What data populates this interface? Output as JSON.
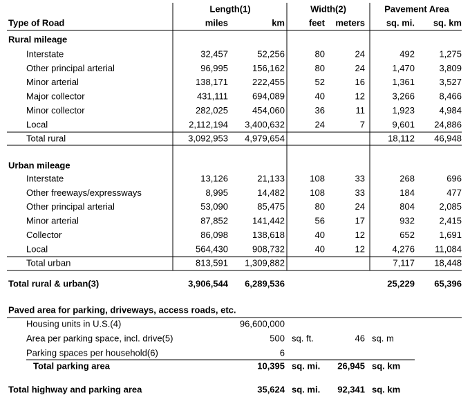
{
  "header": {
    "group_labels": [
      "Length(1)",
      "Width(2)",
      "Pavement Area"
    ],
    "row_label": "Type of Road",
    "units": [
      "miles",
      "km",
      "feet",
      "meters",
      "sq. mi.",
      "sq. km"
    ]
  },
  "rural": {
    "heading": "Rural mileage",
    "rows": [
      [
        "Interstate",
        "32,457",
        "52,256",
        "80",
        "24",
        "492",
        "1,275"
      ],
      [
        "Other principal arterial",
        "96,995",
        "156,162",
        "80",
        "24",
        "1,470",
        "3,809"
      ],
      [
        "Minor arterial",
        "138,171",
        "222,455",
        "52",
        "16",
        "1,361",
        "3,527"
      ],
      [
        "Major collector",
        "431,111",
        "694,089",
        "40",
        "12",
        "3,266",
        "8,466"
      ],
      [
        "Minor collector",
        "282,025",
        "454,060",
        "36",
        "11",
        "1,923",
        "4,984"
      ],
      [
        "Local",
        "2,112,194",
        "3,400,632",
        "24",
        "7",
        "9,601",
        "24,886"
      ]
    ],
    "total": [
      "Total rural",
      "3,092,953",
      "4,979,654",
      null,
      null,
      "18,112",
      "46,948"
    ]
  },
  "urban": {
    "heading": "Urban mileage",
    "rows": [
      [
        "Interstate",
        "13,126",
        "21,133",
        "108",
        "33",
        "268",
        "696"
      ],
      [
        "Other freeways/expressways",
        "8,995",
        "14,482",
        "108",
        "33",
        "184",
        "477"
      ],
      [
        "Other principal arterial",
        "53,090",
        "85,475",
        "80",
        "24",
        "804",
        "2,085"
      ],
      [
        "Minor arterial",
        "87,852",
        "141,442",
        "56",
        "17",
        "932",
        "2,415"
      ],
      [
        "Collector",
        "86,098",
        "138,618",
        "40",
        "12",
        "652",
        "1,691"
      ],
      [
        "Local",
        "564,430",
        "908,732",
        "40",
        "12",
        "4,276",
        "11,084"
      ]
    ],
    "total": [
      "Total urban",
      "813,591",
      "1,309,882",
      null,
      null,
      "7,117",
      "18,448"
    ]
  },
  "grand_total": [
    "Total rural & urban(3)",
    "3,906,544",
    "6,289,536",
    null,
    null,
    "25,229",
    "65,396"
  ],
  "parking": {
    "heading": "Paved area for parking, driveways, access roads, etc.",
    "rows": [
      [
        "Housing units in U.S.(4)",
        "96,600,000"
      ],
      [
        "Area per parking space, incl. drive(5)",
        "500",
        "sq. ft.",
        "46",
        "sq. m"
      ],
      [
        "Parking spaces per household(6)",
        "6"
      ]
    ],
    "total": [
      "Total parking area",
      "10,395",
      "sq. mi.",
      "26,945",
      "sq. km"
    ]
  },
  "highway_total": [
    "Total highway and parking area",
    "35,624",
    "sq. mi.",
    "92,341",
    "sq. km"
  ]
}
